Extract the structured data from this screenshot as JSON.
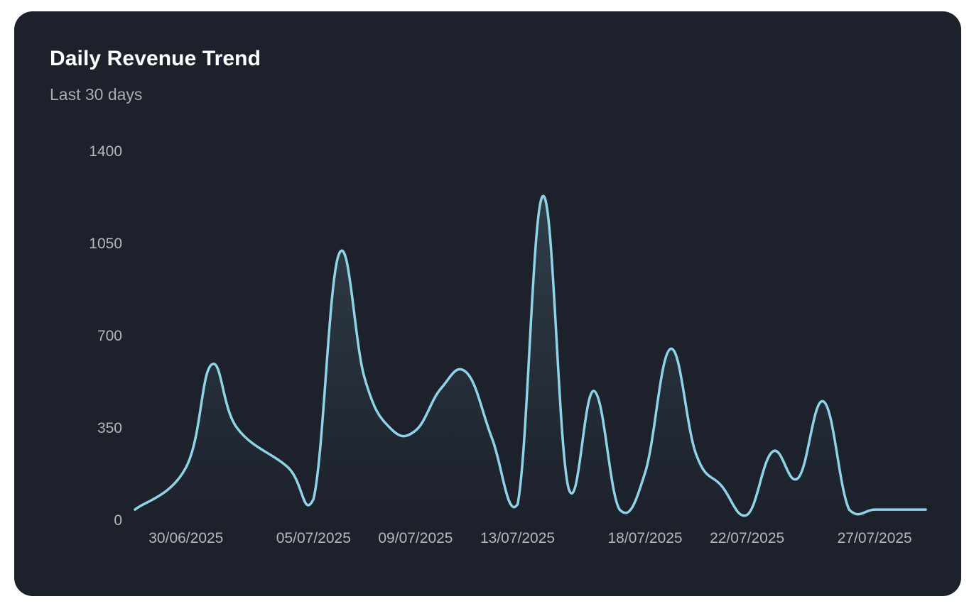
{
  "card": {
    "title": "Daily Revenue Trend",
    "subtitle": "Last 30 days"
  },
  "colors": {
    "background": "#1d212b",
    "line": "#8fd3e8",
    "text": "#ffffff",
    "muted": "#a7abb3"
  },
  "chart_data": {
    "type": "area",
    "title": "Daily Revenue Trend",
    "subtitle": "Last 30 days",
    "xlabel": "",
    "ylabel": "",
    "ylim": [
      0,
      1400
    ],
    "yticks": [
      0,
      350,
      700,
      1050,
      1400
    ],
    "xticks": [
      "30/06/2025",
      "05/07/2025",
      "09/07/2025",
      "13/07/2025",
      "18/07/2025",
      "22/07/2025",
      "27/07/2025"
    ],
    "grid": false,
    "legend": "none",
    "x": [
      "28/06/2025",
      "30/06/2025",
      "01/07/2025",
      "02/07/2025",
      "04/07/2025",
      "05/07/2025",
      "06/07/2025",
      "07/07/2025",
      "08/07/2025",
      "09/07/2025",
      "10/07/2025",
      "11/07/2025",
      "12/07/2025",
      "13/07/2025",
      "14/07/2025",
      "15/07/2025",
      "16/07/2025",
      "17/07/2025",
      "18/07/2025",
      "19/07/2025",
      "20/07/2025",
      "21/07/2025",
      "22/07/2025",
      "23/07/2025",
      "24/07/2025",
      "25/07/2025",
      "26/07/2025",
      "27/07/2025",
      "28/07/2025",
      "29/07/2025"
    ],
    "series": [
      {
        "values": [
          40,
          200,
          590,
          350,
          200,
          80,
          1010,
          540,
          350,
          340,
          500,
          560,
          310,
          60,
          1230,
          120,
          490,
          40,
          180,
          650,
          250,
          130,
          20,
          260,
          160,
          450,
          40,
          40,
          40,
          40
        ]
      }
    ]
  }
}
